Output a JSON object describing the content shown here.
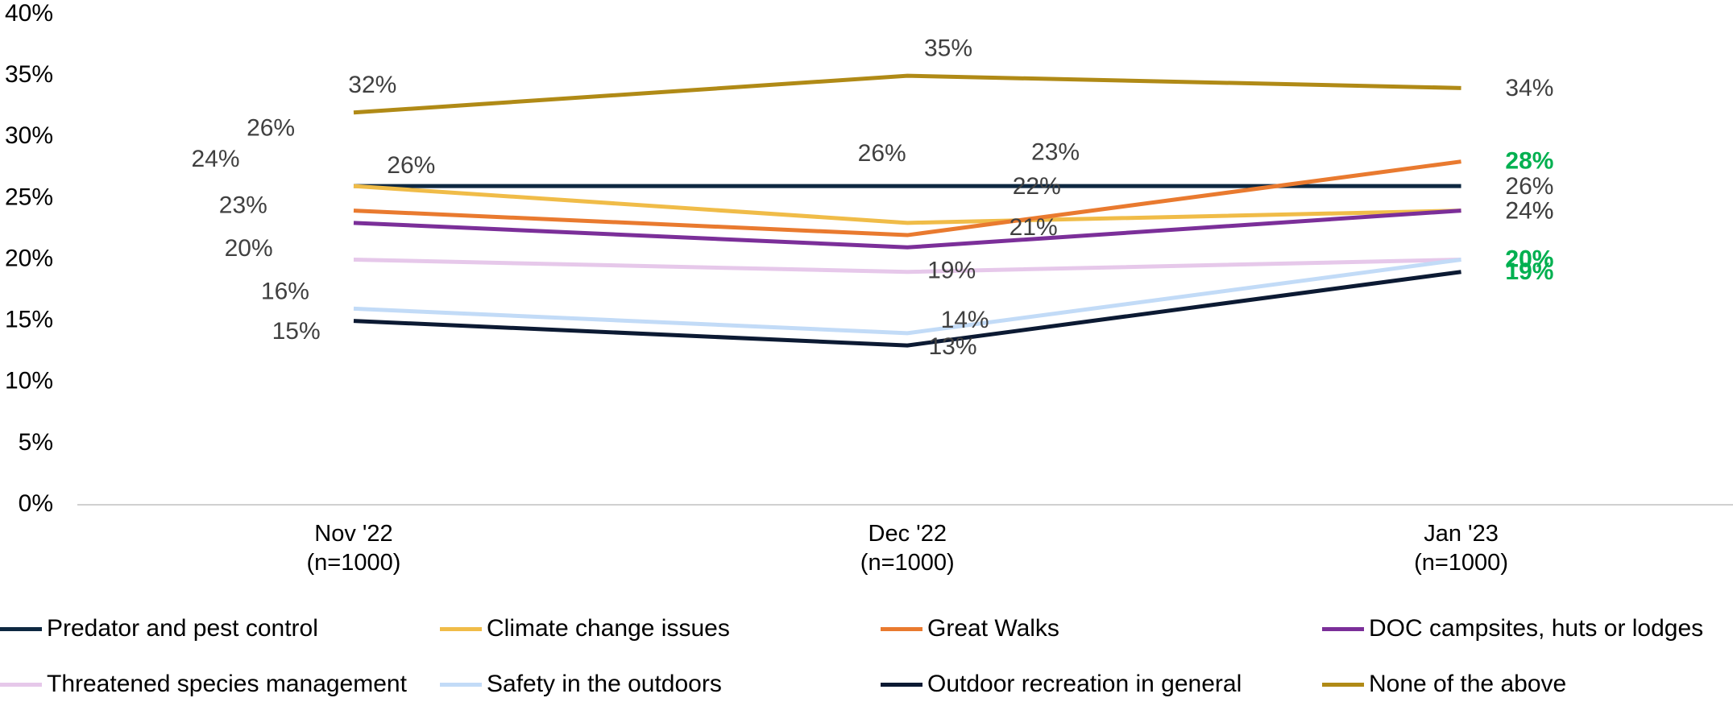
{
  "chart_data": {
    "type": "line",
    "categories": [
      "Nov '22\n(n=1000)",
      "Dec '22\n(n=1000)",
      "Jan '23\n(n=1000)"
    ],
    "ylim": [
      0,
      40
    ],
    "yticks": [
      {
        "value": 0,
        "label": "0%"
      },
      {
        "value": 5,
        "label": "5%"
      },
      {
        "value": 10,
        "label": "10%"
      },
      {
        "value": 15,
        "label": "15%"
      },
      {
        "value": 20,
        "label": "20%"
      },
      {
        "value": 25,
        "label": "25%"
      },
      {
        "value": 30,
        "label": "30%"
      },
      {
        "value": 35,
        "label": "35%"
      },
      {
        "value": 40,
        "label": "40%"
      }
    ],
    "legend": "bottom",
    "series": [
      {
        "name": "Predator and pest control",
        "color": "#0e2841",
        "values": [
          26,
          26,
          26
        ],
        "value_labels": [
          "26%",
          "26%",
          "26%"
        ],
        "label_colors": [
          "#404040",
          "#404040",
          "#404040"
        ]
      },
      {
        "name": "Climate change issues",
        "color": "#f0bc48",
        "values": [
          26,
          23,
          24
        ],
        "value_labels": [
          "26%",
          "23%",
          "24%"
        ],
        "label_colors": [
          "#404040",
          "#404040",
          "#404040"
        ]
      },
      {
        "name": "Great Walks",
        "color": "#e97a2f",
        "values": [
          24,
          22,
          28
        ],
        "value_labels": [
          "24%",
          "22%",
          "28%"
        ],
        "label_colors": [
          "#404040",
          "#404040",
          "#00b050"
        ]
      },
      {
        "name": "DOC campsites, huts or lodges",
        "color": "#7b2f99",
        "values": [
          23,
          21,
          24
        ],
        "value_labels": [
          "23%",
          "21%",
          "24%"
        ],
        "label_colors": [
          "#404040",
          "#404040",
          "#404040"
        ]
      },
      {
        "name": "Threatened species management",
        "color": "#e6c8ea",
        "values": [
          20,
          19,
          20
        ],
        "value_labels": [
          "20%",
          "19%",
          "20%"
        ],
        "label_colors": [
          "#404040",
          "#404040",
          "#00b050"
        ]
      },
      {
        "name": "Safety in the outdoors",
        "color": "#c2dbf7",
        "values": [
          16,
          14,
          20
        ],
        "value_labels": [
          "16%",
          "14%",
          "20%"
        ],
        "label_colors": [
          "#404040",
          "#404040",
          "#00b050"
        ]
      },
      {
        "name": "Outdoor recreation in general",
        "color": "#0c1a33",
        "values": [
          15,
          13,
          19
        ],
        "value_labels": [
          "15%",
          "13%",
          "19%"
        ],
        "label_colors": [
          "#404040",
          "#404040",
          "#00b050"
        ]
      },
      {
        "name": "None of the above",
        "color": "#b08a16",
        "values": [
          32,
          35,
          34
        ],
        "value_labels": [
          "32%",
          "35%",
          "34%"
        ],
        "label_colors": [
          "#404040",
          "#404040",
          "#404040"
        ]
      }
    ]
  }
}
